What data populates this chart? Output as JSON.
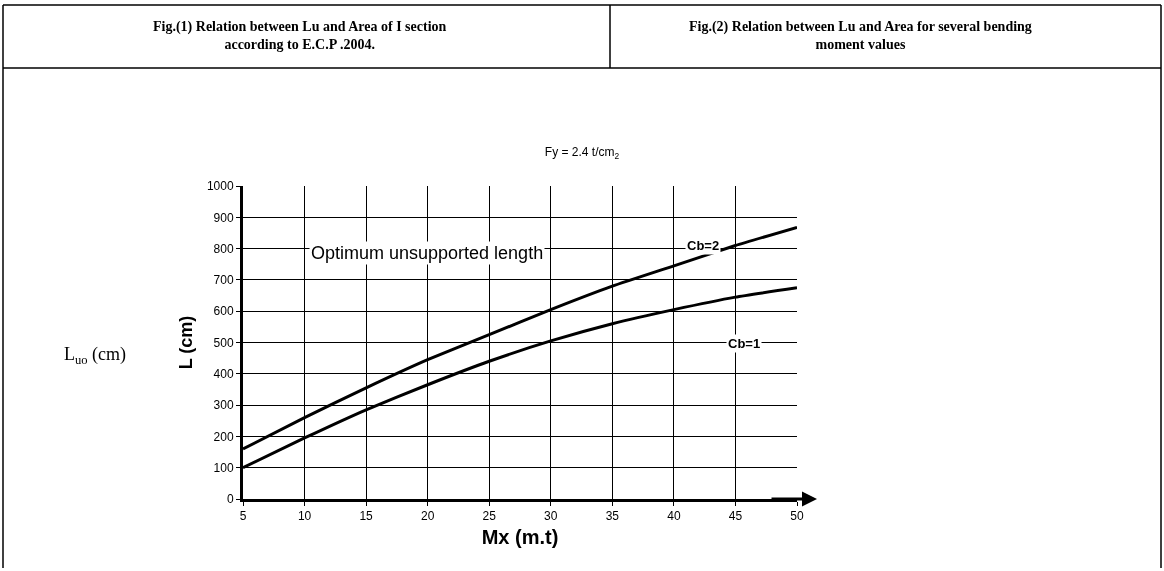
{
  "chart_data": {
    "type": "line",
    "title": "Fy = 2.4 t/cm$_{2}$",
    "xlabel": "Mx (m.t)",
    "ylabel": "L (cm)",
    "x": [
      5,
      10,
      15,
      20,
      25,
      30,
      35,
      40,
      45,
      50
    ],
    "series": [
      {
        "color": "#000000",
        "values": [
          160,
          260,
          355,
          445,
          525,
          605,
          680,
          745,
          810,
          868
        ]
      },
      {
        "color": "#000000",
        "values": [
          100,
          195,
          285,
          365,
          440,
          505,
          560,
          605,
          645,
          675
        ]
      }
    ],
    "xlim": [
      5,
      50
    ],
    "xticks": [
      5,
      10,
      15,
      20,
      25,
      30,
      35,
      40,
      45,
      50
    ],
    "ylim": [
      0,
      1000
    ],
    "yticks": [
      0,
      100,
      200,
      300,
      400,
      500,
      600,
      700,
      800,
      900,
      1000
    ],
    "grid": true,
    "legend": false,
    "marker": "none",
    "line_style": "solid",
    "annotations": [
      "Fig.(1) Relation between Lu and Area of I section according to E.C.P .2004.",
      "Fig.(2) Relation between Lu and Area for several bending moment values",
      "L$_{uo}$ (cm)",
      "Optimum unsupported length",
      "Cb=2",
      "Cb=1"
    ]
  }
}
